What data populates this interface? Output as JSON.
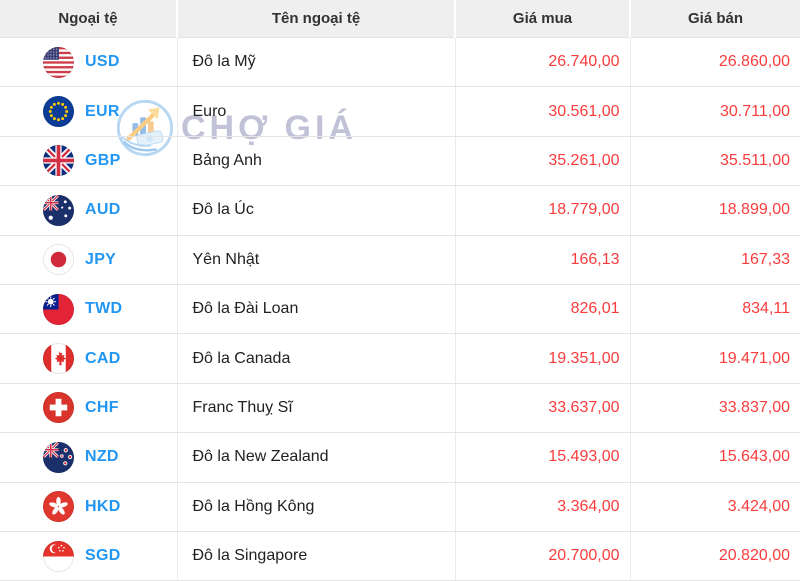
{
  "table": {
    "columns": [
      {
        "key": "code",
        "label": "Ngoại tệ"
      },
      {
        "key": "name",
        "label": "Tên ngoại tệ"
      },
      {
        "key": "buy",
        "label": "Giá mua"
      },
      {
        "key": "sell",
        "label": "Giá bán"
      }
    ],
    "rows": [
      {
        "flag": "us",
        "code": "USD",
        "name": "Đô la Mỹ",
        "buy": "26.740,00",
        "sell": "26.860,00"
      },
      {
        "flag": "eu",
        "code": "EUR",
        "name": "Euro",
        "buy": "30.561,00",
        "sell": "30.711,00"
      },
      {
        "flag": "gb",
        "code": "GBP",
        "name": "Bảng Anh",
        "buy": "35.261,00",
        "sell": "35.511,00"
      },
      {
        "flag": "au",
        "code": "AUD",
        "name": "Đô la Úc",
        "buy": "18.779,00",
        "sell": "18.899,00"
      },
      {
        "flag": "jp",
        "code": "JPY",
        "name": "Yên Nhật",
        "buy": "166,13",
        "sell": "167,33"
      },
      {
        "flag": "tw",
        "code": "TWD",
        "name": "Đô la Đài Loan",
        "buy": "826,01",
        "sell": "834,11"
      },
      {
        "flag": "ca",
        "code": "CAD",
        "name": "Đô la Canada",
        "buy": "19.351,00",
        "sell": "19.471,00"
      },
      {
        "flag": "ch",
        "code": "CHF",
        "name": "Franc Thuỵ Sĩ",
        "buy": "33.637,00",
        "sell": "33.837,00"
      },
      {
        "flag": "nz",
        "code": "NZD",
        "name": "Đô la New Zealand",
        "buy": "15.493,00",
        "sell": "15.643,00"
      },
      {
        "flag": "hk",
        "code": "HKD",
        "name": "Đô la Hồng Kông",
        "buy": "3.364,00",
        "sell": "3.424,00"
      },
      {
        "flag": "sg",
        "code": "SGD",
        "name": "Đô la Singapore",
        "buy": "20.700,00",
        "sell": "20.820,00"
      }
    ]
  },
  "watermark": {
    "text": "CHỢ GIÁ"
  },
  "colors": {
    "code_blue": "#2196f3",
    "price_red": "#fa3c3c",
    "header_bg": "#efefef",
    "header_text": "#333333",
    "border": "#e4e4e4",
    "watermark_text": "#c6c6dd",
    "watermark_orange": "#f5a623",
    "watermark_blue": "#4e9be0"
  }
}
